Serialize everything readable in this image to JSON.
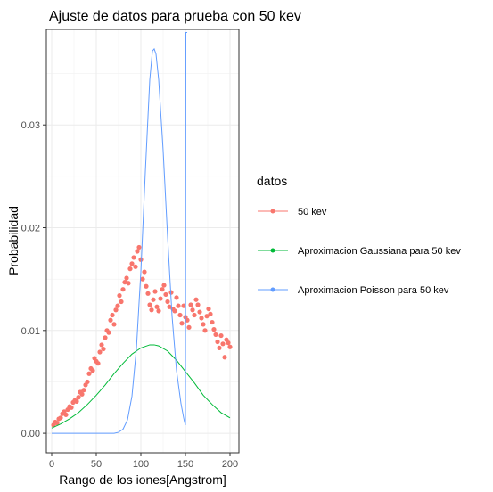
{
  "chart_data": {
    "type": "scatter",
    "title": "Ajuste de datos para prueba con 50 kev",
    "xlabel": "Rango de los iones[Angstrom]",
    "ylabel": "Probabilidad",
    "xlim": [
      -6,
      210
    ],
    "ylim": [
      -0.0019,
      0.0393
    ],
    "x_ticks": [
      0,
      50,
      100,
      150,
      200
    ],
    "y_ticks": [
      0.0,
      0.01,
      0.02,
      0.03
    ],
    "x_tick_labels": [
      "0",
      "50",
      "100",
      "150",
      "200"
    ],
    "y_tick_labels": [
      "0.00",
      "0.01",
      "0.02",
      "0.03"
    ],
    "grid": true,
    "legend": {
      "title": "datos",
      "position": "right",
      "entries": [
        "50 kev",
        "Aproximacion Gaussiana para 50 kev",
        "Aproximacion Poisson para 50 kev"
      ]
    },
    "colors": {
      "50 kev": "#F8766D",
      "gauss": "#00BA38",
      "poisson": "#619CFF"
    },
    "series": [
      {
        "name": "50 kev",
        "kind": "points",
        "x": [
          2,
          4,
          6,
          8,
          10,
          12,
          14,
          16,
          18,
          20,
          22,
          24,
          26,
          28,
          30,
          32,
          34,
          36,
          38,
          40,
          42,
          44,
          46,
          48,
          50,
          52,
          54,
          56,
          58,
          60,
          62,
          64,
          66,
          68,
          70,
          72,
          74,
          76,
          78,
          80,
          82,
          84,
          86,
          88,
          90,
          92,
          94,
          96,
          98,
          100,
          102,
          104,
          106,
          108,
          110,
          112,
          114,
          116,
          118,
          120,
          122,
          124,
          126,
          128,
          130,
          132,
          134,
          136,
          138,
          140,
          142,
          144,
          146,
          148,
          150,
          152,
          154,
          156,
          158,
          160,
          162,
          164,
          166,
          168,
          170,
          172,
          174,
          176,
          178,
          180,
          182,
          184,
          186,
          188,
          190,
          192,
          194,
          196,
          198,
          200
        ],
        "y": [
          0.0008,
          0.0011,
          0.001,
          0.0014,
          0.0015,
          0.0019,
          0.0021,
          0.0018,
          0.0023,
          0.0026,
          0.0025,
          0.003,
          0.0032,
          0.0031,
          0.0035,
          0.004,
          0.0038,
          0.0042,
          0.0047,
          0.005,
          0.0058,
          0.0063,
          0.0061,
          0.0073,
          0.007,
          0.0068,
          0.0079,
          0.0086,
          0.0082,
          0.0093,
          0.01,
          0.0098,
          0.011,
          0.0115,
          0.0106,
          0.012,
          0.0124,
          0.0134,
          0.0128,
          0.014,
          0.0147,
          0.0151,
          0.0146,
          0.016,
          0.0165,
          0.0171,
          0.0162,
          0.0177,
          0.0181,
          0.0169,
          0.015,
          0.0157,
          0.0143,
          0.0136,
          0.0125,
          0.012,
          0.013,
          0.0138,
          0.0123,
          0.0119,
          0.0131,
          0.014,
          0.0144,
          0.0135,
          0.0128,
          0.0123,
          0.0137,
          0.0121,
          0.0119,
          0.0132,
          0.0124,
          0.0115,
          0.0107,
          0.0124,
          0.0113,
          0.011,
          0.0103,
          0.0125,
          0.012,
          0.0115,
          0.013,
          0.0125,
          0.0118,
          0.0112,
          0.0106,
          0.01,
          0.0114,
          0.0121,
          0.0116,
          0.0108,
          0.0101,
          0.0096,
          0.0089,
          0.0083,
          0.0095,
          0.0087,
          0.0074,
          0.0091,
          0.0088,
          0.0084
        ]
      },
      {
        "name": "Aproximacion Gaussiana para 50 kev",
        "kind": "line",
        "x": [
          0,
          10,
          20,
          30,
          40,
          50,
          60,
          70,
          80,
          90,
          100,
          110,
          115,
          120,
          130,
          140,
          150,
          160,
          170,
          180,
          190,
          200
        ],
        "y": [
          0.0005,
          0.0009,
          0.0014,
          0.002,
          0.0028,
          0.0037,
          0.0047,
          0.0058,
          0.0068,
          0.0077,
          0.0083,
          0.0086,
          0.0086,
          0.0085,
          0.008,
          0.0071,
          0.006,
          0.0049,
          0.0037,
          0.0028,
          0.002,
          0.0015
        ]
      },
      {
        "name": "Aproximacion Poisson para 50 kev",
        "kind": "line",
        "x": [
          0,
          70,
          75,
          80,
          85,
          90,
          95,
          100,
          105,
          110,
          113,
          115,
          117,
          120,
          125,
          130,
          135,
          140,
          145,
          148,
          149,
          150,
          150.5,
          151,
          152
        ],
        "y": [
          0.0,
          0.0,
          0.0001,
          0.0004,
          0.0013,
          0.0036,
          0.0082,
          0.0157,
          0.0254,
          0.0344,
          0.0372,
          0.0374,
          0.0369,
          0.0344,
          0.0275,
          0.0191,
          0.0114,
          0.0061,
          0.0029,
          0.0015,
          0.0011,
          0.0008,
          0.039,
          0.039,
          0.039
        ]
      }
    ]
  }
}
